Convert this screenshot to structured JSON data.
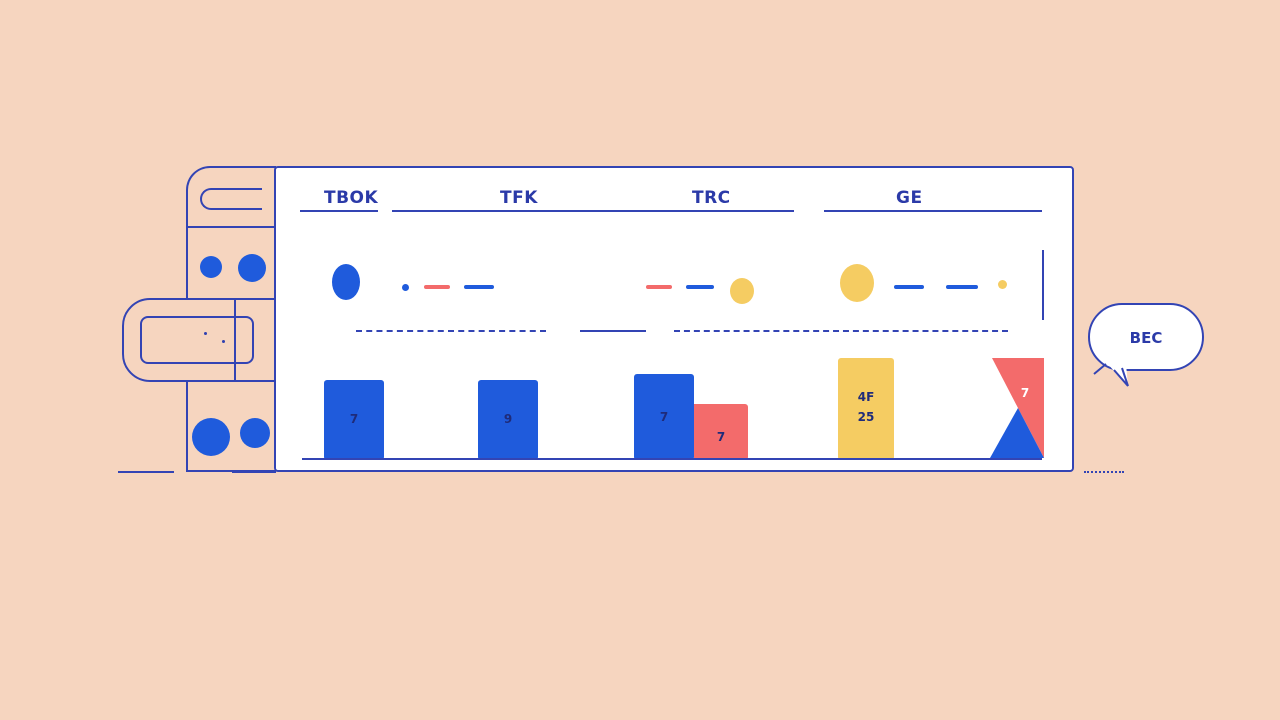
{
  "columns": [
    {
      "label": "TBOK"
    },
    {
      "label": "TFK"
    },
    {
      "label": "TRC"
    },
    {
      "label": "GE"
    }
  ],
  "bars": [
    {
      "label": "7",
      "color": "#1f5bdc"
    },
    {
      "label": "9",
      "color": "#1f5bdc"
    },
    {
      "label": "7",
      "color": "#1f5bdc"
    },
    {
      "label": "7",
      "color": "#f36b6b"
    },
    {
      "label_line1": "4F",
      "label_line2": "25",
      "color": "#f5cc62"
    },
    {
      "label": "7",
      "color": "#f36b6b"
    }
  ],
  "bubble": {
    "label": "BEC"
  },
  "colors": {
    "background": "#f6d5bf",
    "blue": "#1f5bdc",
    "red": "#f36b6b",
    "yellow": "#f5cc62",
    "outline": "#3344b4"
  }
}
